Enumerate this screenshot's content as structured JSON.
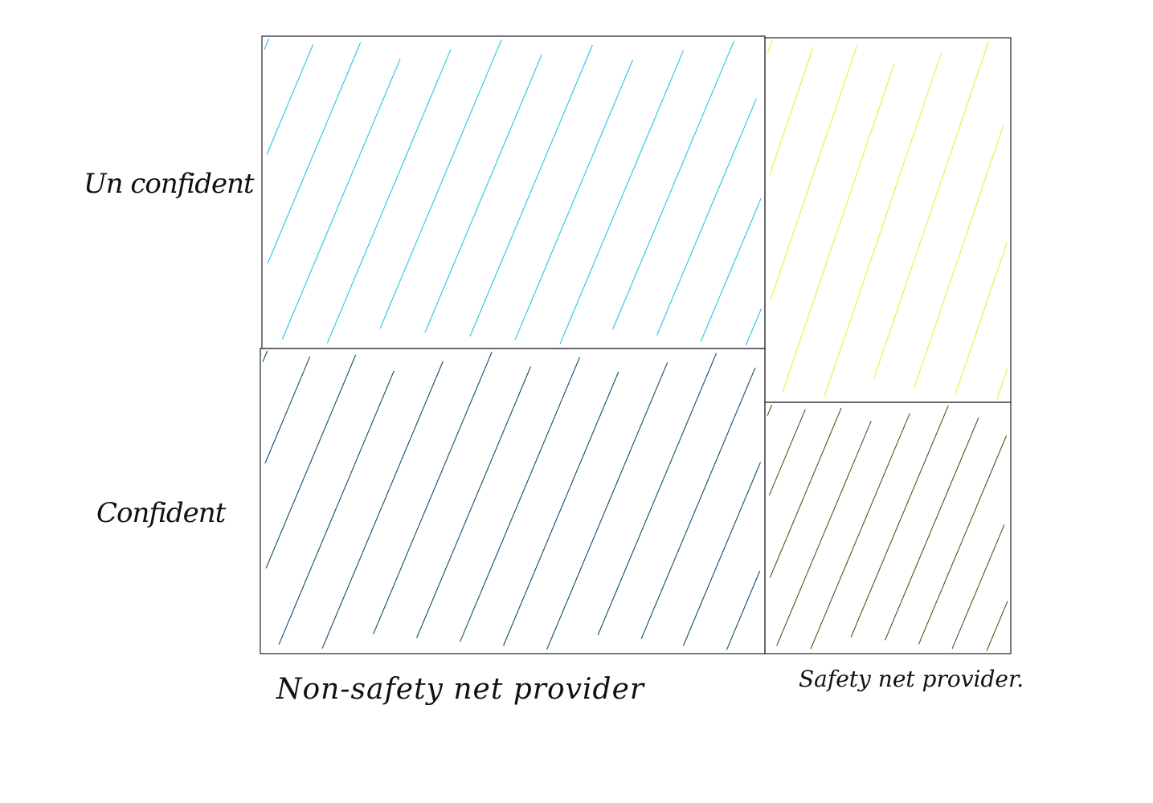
{
  "rows": [
    {
      "id": "unconfident",
      "label": "Un confident"
    },
    {
      "id": "confident",
      "label": "Confident"
    }
  ],
  "columns": [
    {
      "id": "non-safety-net-provider",
      "label": "Non-safety  net  provider"
    },
    {
      "id": "safety-net-provider",
      "label": "Safety net provider."
    }
  ],
  "cells": [
    {
      "id": "non-safety-unconfident",
      "row": "unconfident",
      "column": "non-safety-net-provider",
      "hatch_color": "#29c3e6"
    },
    {
      "id": "non-safety-confident",
      "row": "confident",
      "column": "non-safety-net-provider",
      "hatch_color": "#0f4f66"
    },
    {
      "id": "safety-unconfident",
      "row": "unconfident",
      "column": "safety-net-provider",
      "hatch_color": "#f1ea3a"
    },
    {
      "id": "safety-confident",
      "row": "confident",
      "column": "safety-net-provider",
      "hatch_color": "#55531a"
    }
  ]
}
